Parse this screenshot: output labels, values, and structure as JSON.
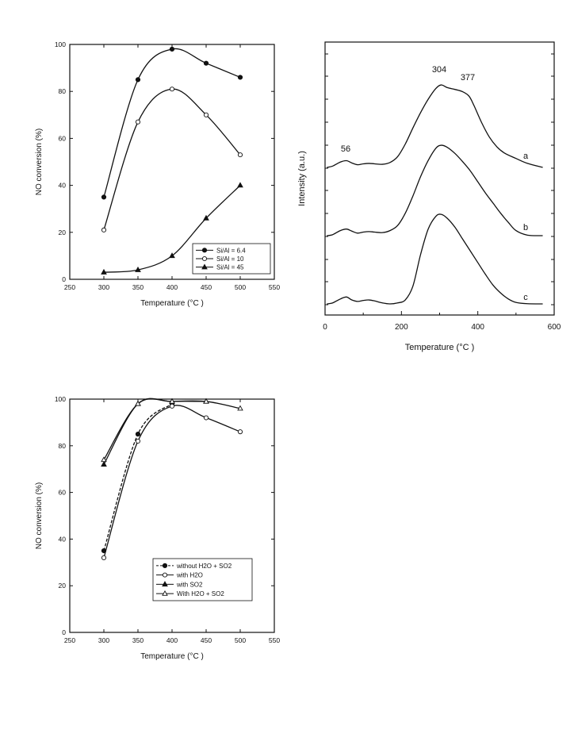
{
  "chart_data": [
    {
      "type": "line",
      "xlabel": "Temperature (°C )",
      "ylabel": "NO conversion (%)",
      "xlim": [
        250,
        550
      ],
      "ylim": [
        0,
        100
      ],
      "xticks": [
        "250",
        "300",
        "350",
        "400",
        "450",
        "500",
        "550"
      ],
      "yticks": [
        "0",
        "20",
        "40",
        "60",
        "80",
        "100"
      ],
      "legend_position": "bottom-right",
      "series": [
        {
          "name": "Si/Al = 6.4",
          "marker": "filled-circle",
          "dash": "solid",
          "x": [
            300,
            350,
            400,
            450,
            500
          ],
          "y": [
            35,
            85,
            98,
            92,
            86
          ]
        },
        {
          "name": "Si/Al = 10",
          "marker": "open-circle",
          "dash": "solid",
          "x": [
            300,
            350,
            400,
            450,
            500
          ],
          "y": [
            21,
            67,
            81,
            70,
            53
          ]
        },
        {
          "name": "Si/Al = 45",
          "marker": "filled-triangle",
          "dash": "solid",
          "x": [
            300,
            350,
            400,
            450,
            500
          ],
          "y": [
            3,
            4,
            10,
            26,
            40
          ]
        }
      ]
    },
    {
      "type": "line",
      "xlabel": "Temperature (°C )",
      "ylabel": "Intensity (a.u.)",
      "xlim": [
        0,
        600
      ],
      "xticks": [
        "0",
        "200",
        "400",
        "600"
      ],
      "peak_labels": [
        "56",
        "304",
        "377"
      ],
      "series": [
        {
          "name": "a",
          "x": [
            5,
            20,
            40,
            56,
            70,
            85,
            100,
            115,
            130,
            150,
            170,
            190,
            210,
            230,
            250,
            270,
            290,
            304,
            320,
            340,
            360,
            377,
            390,
            410,
            430,
            450,
            470,
            500,
            530,
            570
          ],
          "y": [
            1.0,
            1.15,
            1.6,
            1.75,
            1.5,
            1.3,
            1.4,
            1.45,
            1.4,
            1.35,
            1.55,
            2.2,
            3.6,
            5.4,
            7.1,
            8.6,
            9.8,
            10.2,
            9.9,
            9.7,
            9.45,
            8.95,
            7.9,
            6.0,
            4.4,
            3.3,
            2.6,
            2.0,
            1.45,
            1.0
          ]
        },
        {
          "name": "b",
          "x": [
            5,
            20,
            40,
            56,
            70,
            85,
            100,
            115,
            130,
            150,
            170,
            190,
            210,
            230,
            250,
            270,
            290,
            304,
            320,
            340,
            360,
            380,
            400,
            420,
            440,
            460,
            480,
            500,
            530,
            570
          ],
          "y": [
            1.0,
            1.1,
            1.5,
            1.65,
            1.45,
            1.25,
            1.35,
            1.4,
            1.35,
            1.3,
            1.5,
            2.0,
            3.2,
            4.9,
            6.8,
            8.4,
            9.6,
            9.9,
            9.7,
            9.1,
            8.3,
            7.4,
            6.3,
            5.2,
            4.2,
            3.2,
            2.3,
            1.5,
            1.05,
            1.0
          ]
        },
        {
          "name": "c",
          "x": [
            5,
            20,
            40,
            56,
            70,
            85,
            100,
            115,
            130,
            150,
            170,
            190,
            210,
            230,
            250,
            270,
            290,
            304,
            320,
            340,
            360,
            380,
            400,
            420,
            440,
            460,
            480,
            500,
            530,
            570
          ],
          "y": [
            1.0,
            1.1,
            1.5,
            1.7,
            1.4,
            1.25,
            1.35,
            1.4,
            1.3,
            1.1,
            1.0,
            1.1,
            1.4,
            2.8,
            6.0,
            8.6,
            9.9,
            10.1,
            9.7,
            8.8,
            7.6,
            6.4,
            5.2,
            4.0,
            2.9,
            2.1,
            1.5,
            1.15,
            1.02,
            1.0
          ]
        }
      ]
    },
    {
      "type": "line",
      "xlabel": "Temperature (°C )",
      "ylabel": "NO conversion (%)",
      "xlim": [
        250,
        550
      ],
      "ylim": [
        0,
        100
      ],
      "xticks": [
        "250",
        "300",
        "350",
        "400",
        "450",
        "500",
        "550"
      ],
      "yticks": [
        "0",
        "20",
        "40",
        "60",
        "80",
        "100"
      ],
      "legend_position": "bottom-right",
      "series": [
        {
          "name": "without H2O + SO2",
          "marker": "filled-circle",
          "dash": "dashed",
          "x": [
            300,
            350,
            400
          ],
          "y": [
            35,
            85,
            98
          ]
        },
        {
          "name": "with H2O",
          "marker": "open-circle",
          "dash": "solid",
          "x": [
            300,
            350,
            400,
            450,
            500
          ],
          "y": [
            32,
            82,
            97,
            92,
            86
          ]
        },
        {
          "name": "with SO2",
          "marker": "filled-triangle",
          "dash": "solid",
          "x": [
            300,
            350,
            400,
            450
          ],
          "y": [
            72,
            98,
            99,
            99
          ]
        },
        {
          "name": "With H2O + SO2",
          "marker": "open-triangle",
          "dash": "solid",
          "x": [
            300,
            350,
            400,
            450,
            500
          ],
          "y": [
            74,
            98,
            99,
            99,
            96
          ]
        }
      ]
    }
  ]
}
